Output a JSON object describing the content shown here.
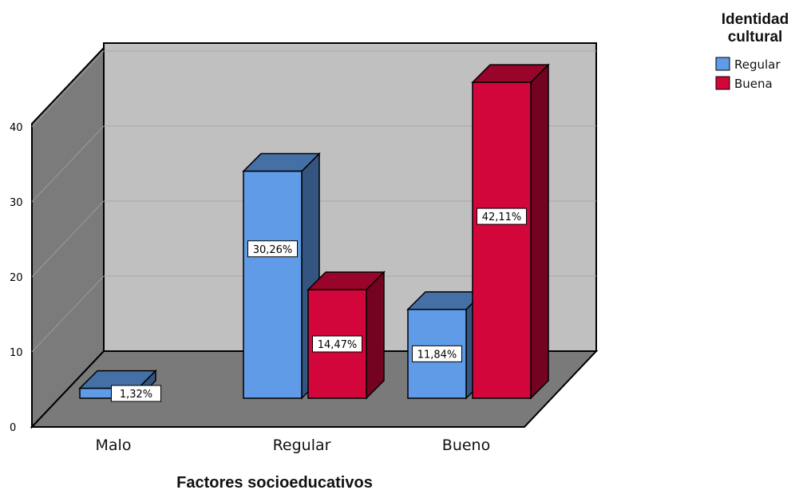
{
  "chart_data": {
    "type": "bar",
    "title": "",
    "xlabel": "Factores socioeducativos",
    "ylabel": "",
    "categories": [
      "Malo",
      "Regular",
      "Bueno"
    ],
    "yticks": [
      0,
      10,
      20,
      30,
      40
    ],
    "ylim": [
      0,
      48
    ],
    "grid": true,
    "legend_position": "top-right",
    "legend_title": [
      "Identidad",
      "cultural"
    ],
    "series": [
      {
        "name": "Regular",
        "color": "#5f9be6",
        "values": [
          1.32,
          30.26,
          11.84
        ],
        "labels": [
          "1,32%",
          "30,26%",
          "11,84%"
        ]
      },
      {
        "name": "Buena",
        "color": "#d3063b",
        "values": [
          null,
          14.47,
          42.11
        ],
        "labels": [
          "",
          "14,47%",
          "42,11%"
        ]
      }
    ]
  }
}
